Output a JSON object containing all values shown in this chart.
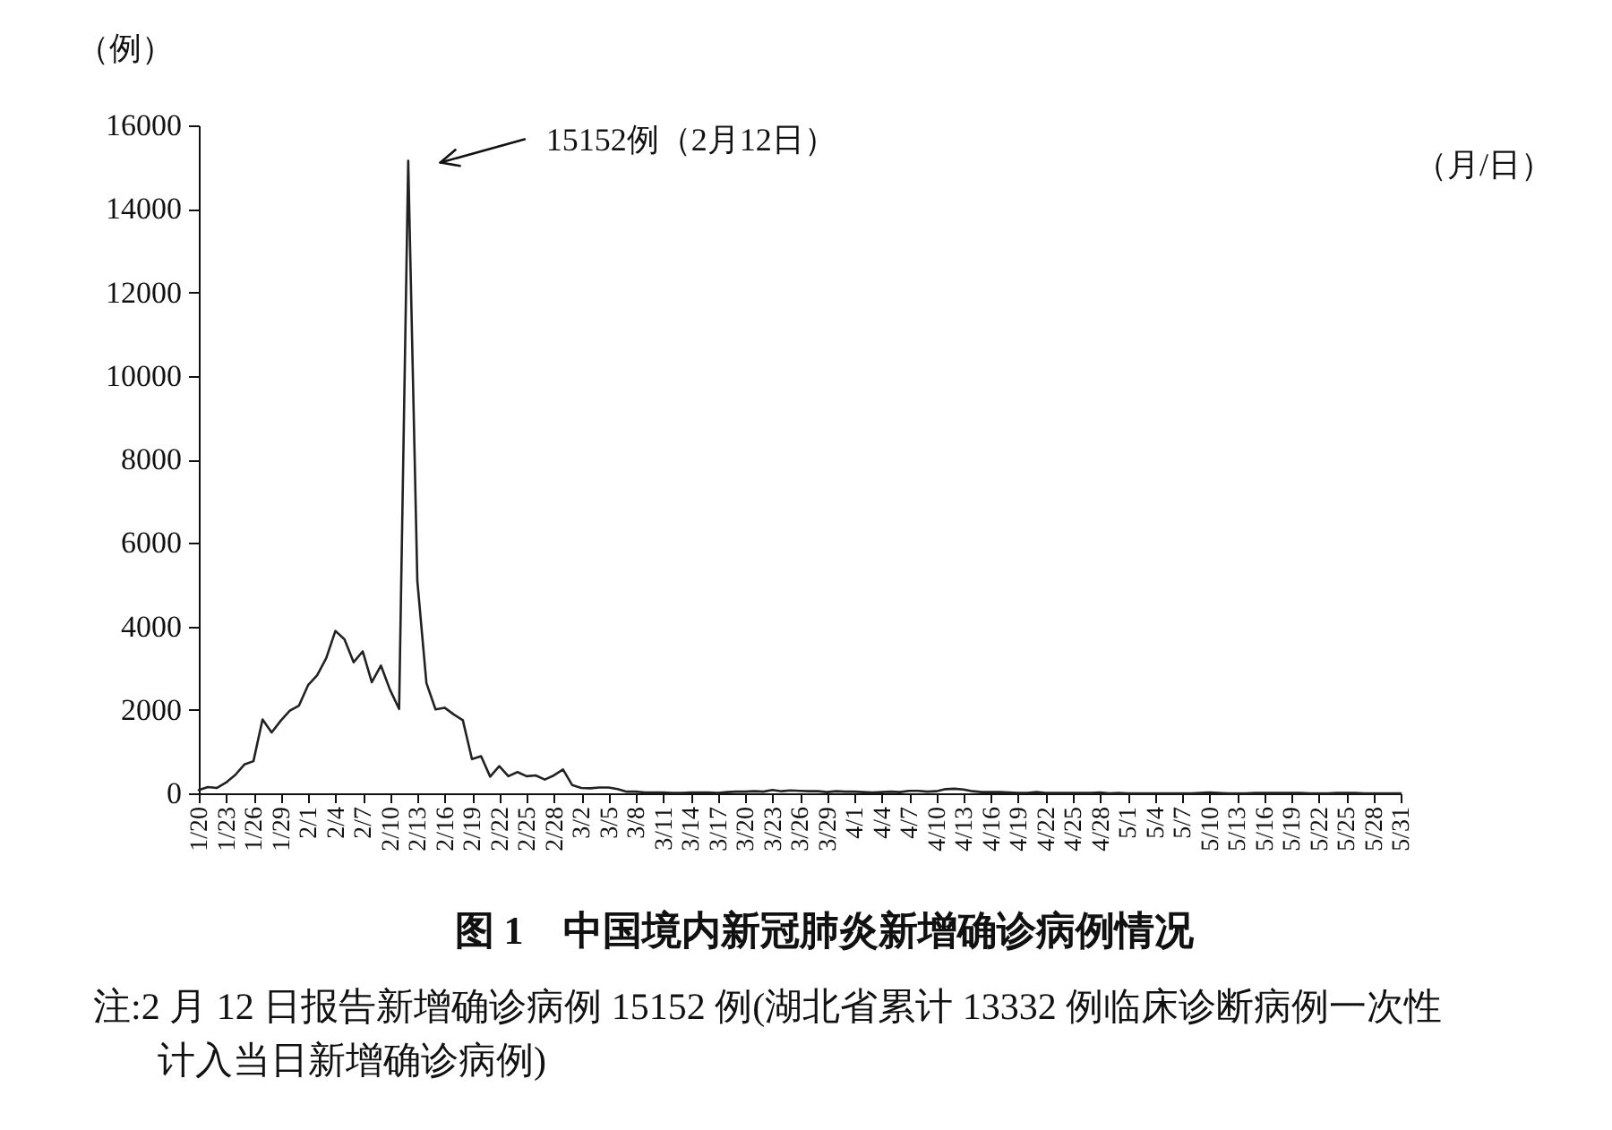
{
  "chart_data": {
    "type": "line",
    "title": "图 1　中国境内新冠肺炎新增确诊病例情况",
    "xlabel": "（月/日）",
    "ylabel": "（例）",
    "categories": [
      "1/20",
      null,
      null,
      "1/23",
      null,
      null,
      "1/26",
      null,
      null,
      "1/29",
      null,
      null,
      "2/1",
      null,
      null,
      "2/4",
      null,
      null,
      "2/7",
      null,
      null,
      "2/10",
      null,
      null,
      "2/13",
      null,
      null,
      "2/16",
      null,
      null,
      "2/19",
      null,
      null,
      "2/22",
      null,
      null,
      "2/25",
      null,
      null,
      "2/28",
      null,
      null,
      "3/2",
      null,
      null,
      "3/5",
      null,
      null,
      "3/8",
      null,
      null,
      "3/11",
      null,
      null,
      "3/14",
      null,
      null,
      "3/17",
      null,
      null,
      "3/20",
      null,
      null,
      "3/23",
      null,
      null,
      "3/26",
      null,
      null,
      "3/29",
      null,
      null,
      "4/1",
      null,
      null,
      "4/4",
      null,
      null,
      "4/7",
      null,
      null,
      "4/10",
      null,
      null,
      "4/13",
      null,
      null,
      "4/16",
      null,
      null,
      "4/19",
      null,
      null,
      "4/22",
      null,
      null,
      "4/25",
      null,
      null,
      "4/28",
      null,
      null,
      "5/1",
      null,
      null,
      "5/4",
      null,
      null,
      "5/7",
      null,
      null,
      "5/10",
      null,
      null,
      "5/13",
      null,
      null,
      "5/16",
      null,
      null,
      "5/19",
      null,
      null,
      "5/22",
      null,
      null,
      "5/25",
      null,
      null,
      "5/28",
      null,
      null,
      "5/31"
    ],
    "values": [
      80,
      150,
      130,
      260,
      440,
      690,
      770,
      1770,
      1460,
      1740,
      1980,
      2100,
      2590,
      2830,
      3240,
      3890,
      3690,
      3140,
      3400,
      2660,
      3060,
      2480,
      2020,
      15152,
      5090,
      2640,
      2010,
      2050,
      1890,
      1750,
      820,
      890,
      400,
      650,
      410,
      510,
      410,
      430,
      330,
      430,
      570,
      200,
      130,
      120,
      140,
      140,
      100,
      40,
      40,
      20,
      20,
      20,
      10,
      10,
      20,
      20,
      20,
      10,
      30,
      40,
      40,
      50,
      40,
      80,
      50,
      70,
      60,
      50,
      50,
      30,
      50,
      40,
      40,
      30,
      20,
      30,
      40,
      30,
      60,
      60,
      40,
      50,
      100,
      110,
      90,
      50,
      30,
      30,
      30,
      20,
      10,
      10,
      30,
      10,
      10,
      10,
      10,
      10,
      10,
      20,
      0,
      10,
      0,
      0,
      0,
      0,
      0,
      0,
      0,
      0,
      10,
      20,
      10,
      0,
      0,
      0,
      10,
      10,
      10,
      10,
      10,
      10,
      0,
      0,
      0,
      10,
      10,
      10,
      0,
      0,
      0,
      0,
      0
    ],
    "color": "#222222",
    "marker": "none",
    "line_style": "solid",
    "ylim": [
      0,
      16000
    ],
    "yticks": [
      0,
      2000,
      4000,
      6000,
      8000,
      10000,
      12000,
      14000,
      16000
    ],
    "annotations": [
      "15152例（2月12日）",
      "注:2 月 12 日报告新增确诊病例 15152 例(湖北省累计 13332 例临床诊断病例一次性计入当日新增确诊病例)"
    ]
  }
}
